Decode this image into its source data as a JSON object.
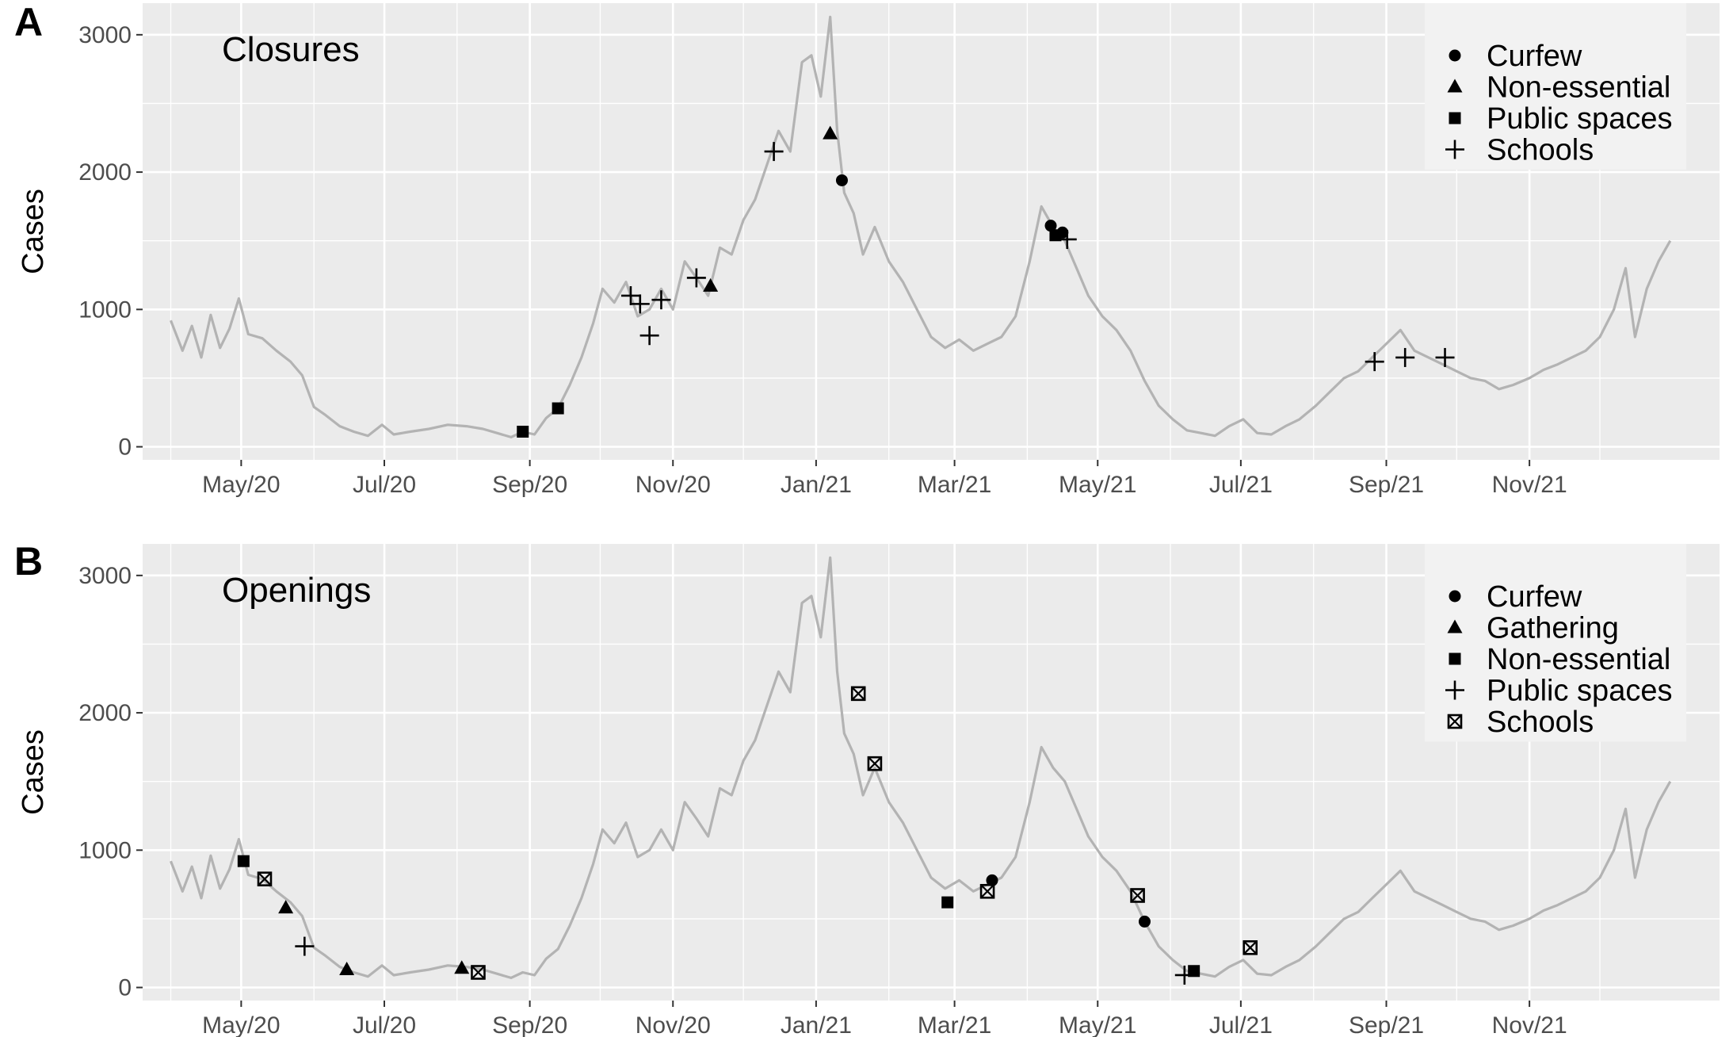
{
  "chart_data": [
    {
      "type": "line",
      "panel_label": "A",
      "title": "Closures",
      "ylabel": "Cases",
      "xlabel": "",
      "ylim": [
        0,
        3200
      ],
      "y_ticks": [
        "0",
        "1000",
        "2000",
        "3000"
      ],
      "x_ticks": [
        "May/20",
        "Jul/20",
        "Sep/20",
        "Nov/20",
        "Jan/21",
        "Mar/21",
        "May/21",
        "Jul/21",
        "Sep/21",
        "Nov/21"
      ],
      "grid": true,
      "legend_position": "top-right",
      "line_color": "#b3b3b3",
      "series": [
        {
          "name": "Curfew",
          "shape": "circle",
          "points": [
            {
              "x": "2021-01-12",
              "y": 1940
            },
            {
              "x": "2021-04-11",
              "y": 1610
            },
            {
              "x": "2021-04-16",
              "y": 1560
            }
          ]
        },
        {
          "name": "Non-essential",
          "shape": "triangle",
          "points": [
            {
              "x": "2020-11-17",
              "y": 1170
            },
            {
              "x": "2021-01-07",
              "y": 2280
            }
          ]
        },
        {
          "name": "Public spaces",
          "shape": "square",
          "points": [
            {
              "x": "2020-08-29",
              "y": 110
            },
            {
              "x": "2020-09-13",
              "y": 280
            },
            {
              "x": "2021-04-13",
              "y": 1540
            }
          ]
        },
        {
          "name": "Schools",
          "shape": "plus",
          "points": [
            {
              "x": "2020-10-14",
              "y": 1100
            },
            {
              "x": "2020-10-18",
              "y": 1040
            },
            {
              "x": "2020-10-22",
              "y": 810
            },
            {
              "x": "2020-10-27",
              "y": 1070
            },
            {
              "x": "2020-11-11",
              "y": 1230
            },
            {
              "x": "2020-12-14",
              "y": 2150
            },
            {
              "x": "2021-04-18",
              "y": 1510
            },
            {
              "x": "2021-08-27",
              "y": 620
            },
            {
              "x": "2021-09-09",
              "y": 650
            },
            {
              "x": "2021-09-26",
              "y": 650
            }
          ]
        }
      ],
      "cases_line": {
        "x_start": "2020-04-01",
        "x_end": "2021-12-31"
      }
    },
    {
      "type": "line",
      "panel_label": "B",
      "title": "Openings",
      "ylabel": "Cases",
      "xlabel": "",
      "ylim": [
        0,
        3200
      ],
      "y_ticks": [
        "0",
        "1000",
        "2000",
        "3000"
      ],
      "x_ticks": [
        "May/20",
        "Jul/20",
        "Sep/20",
        "Nov/20",
        "Jan/21",
        "Mar/21",
        "May/21",
        "Jul/21",
        "Sep/21",
        "Nov/21"
      ],
      "grid": true,
      "legend_position": "top-right",
      "line_color": "#b3b3b3",
      "series": [
        {
          "name": "Curfew",
          "shape": "circle",
          "points": [
            {
              "x": "2021-03-17",
              "y": 780
            },
            {
              "x": "2021-05-21",
              "y": 480
            }
          ]
        },
        {
          "name": "Gathering",
          "shape": "triangle",
          "points": [
            {
              "x": "2020-05-20",
              "y": 580
            },
            {
              "x": "2020-06-15",
              "y": 130
            },
            {
              "x": "2020-08-03",
              "y": 140
            }
          ]
        },
        {
          "name": "Non-essential",
          "shape": "square",
          "points": [
            {
              "x": "2020-05-02",
              "y": 920
            },
            {
              "x": "2021-02-26",
              "y": 620
            },
            {
              "x": "2021-06-11",
              "y": 120
            }
          ]
        },
        {
          "name": "Public spaces",
          "shape": "plus",
          "points": [
            {
              "x": "2020-05-28",
              "y": 300
            },
            {
              "x": "2021-06-07",
              "y": 90
            }
          ]
        },
        {
          "name": "Schools",
          "shape": "boxx",
          "points": [
            {
              "x": "2020-05-11",
              "y": 790
            },
            {
              "x": "2020-08-10",
              "y": 110
            },
            {
              "x": "2021-01-19",
              "y": 2140
            },
            {
              "x": "2021-01-26",
              "y": 1630
            },
            {
              "x": "2021-03-15",
              "y": 700
            },
            {
              "x": "2021-05-18",
              "y": 670
            },
            {
              "x": "2021-07-05",
              "y": 290
            }
          ]
        }
      ],
      "cases_line": {
        "x_start": "2020-04-01",
        "x_end": "2021-12-31"
      }
    }
  ],
  "cases_curve": [
    [
      "2020-04-01",
      920
    ],
    [
      "2020-04-06",
      700
    ],
    [
      "2020-04-10",
      880
    ],
    [
      "2020-04-14",
      650
    ],
    [
      "2020-04-18",
      960
    ],
    [
      "2020-04-22",
      720
    ],
    [
      "2020-04-26",
      860
    ],
    [
      "2020-04-30",
      1080
    ],
    [
      "2020-05-04",
      820
    ],
    [
      "2020-05-10",
      790
    ],
    [
      "2020-05-16",
      700
    ],
    [
      "2020-05-22",
      620
    ],
    [
      "2020-05-27",
      520
    ],
    [
      "2020-06-01",
      290
    ],
    [
      "2020-06-06",
      230
    ],
    [
      "2020-06-12",
      150
    ],
    [
      "2020-06-18",
      110
    ],
    [
      "2020-06-24",
      80
    ],
    [
      "2020-06-30",
      160
    ],
    [
      "2020-07-05",
      90
    ],
    [
      "2020-07-12",
      110
    ],
    [
      "2020-07-20",
      130
    ],
    [
      "2020-07-28",
      160
    ],
    [
      "2020-08-05",
      150
    ],
    [
      "2020-08-12",
      130
    ],
    [
      "2020-08-18",
      100
    ],
    [
      "2020-08-24",
      70
    ],
    [
      "2020-08-29",
      110
    ],
    [
      "2020-09-03",
      90
    ],
    [
      "2020-09-08",
      210
    ],
    [
      "2020-09-13",
      280
    ],
    [
      "2020-09-18",
      450
    ],
    [
      "2020-09-23",
      650
    ],
    [
      "2020-09-28",
      900
    ],
    [
      "2020-10-02",
      1150
    ],
    [
      "2020-10-07",
      1050
    ],
    [
      "2020-10-12",
      1200
    ],
    [
      "2020-10-17",
      950
    ],
    [
      "2020-10-22",
      1000
    ],
    [
      "2020-10-27",
      1150
    ],
    [
      "2020-11-01",
      1000
    ],
    [
      "2020-11-06",
      1350
    ],
    [
      "2020-11-11",
      1230
    ],
    [
      "2020-11-16",
      1100
    ],
    [
      "2020-11-21",
      1450
    ],
    [
      "2020-11-26",
      1400
    ],
    [
      "2020-12-01",
      1650
    ],
    [
      "2020-12-06",
      1800
    ],
    [
      "2020-12-11",
      2050
    ],
    [
      "2020-12-16",
      2300
    ],
    [
      "2020-12-21",
      2150
    ],
    [
      "2020-12-26",
      2800
    ],
    [
      "2020-12-30",
      2850
    ],
    [
      "2021-01-03",
      2550
    ],
    [
      "2021-01-07",
      3130
    ],
    [
      "2021-01-10",
      2300
    ],
    [
      "2021-01-13",
      1850
    ],
    [
      "2021-01-17",
      1700
    ],
    [
      "2021-01-21",
      1400
    ],
    [
      "2021-01-26",
      1600
    ],
    [
      "2021-02-01",
      1350
    ],
    [
      "2021-02-07",
      1200
    ],
    [
      "2021-02-13",
      1000
    ],
    [
      "2021-02-19",
      800
    ],
    [
      "2021-02-25",
      720
    ],
    [
      "2021-03-03",
      780
    ],
    [
      "2021-03-09",
      700
    ],
    [
      "2021-03-15",
      750
    ],
    [
      "2021-03-21",
      800
    ],
    [
      "2021-03-27",
      950
    ],
    [
      "2021-04-02",
      1350
    ],
    [
      "2021-04-07",
      1750
    ],
    [
      "2021-04-12",
      1600
    ],
    [
      "2021-04-17",
      1500
    ],
    [
      "2021-04-22",
      1300
    ],
    [
      "2021-04-27",
      1100
    ],
    [
      "2021-05-03",
      950
    ],
    [
      "2021-05-09",
      850
    ],
    [
      "2021-05-15",
      700
    ],
    [
      "2021-05-21",
      480
    ],
    [
      "2021-05-27",
      300
    ],
    [
      "2021-06-02",
      200
    ],
    [
      "2021-06-08",
      120
    ],
    [
      "2021-06-14",
      100
    ],
    [
      "2021-06-20",
      80
    ],
    [
      "2021-06-26",
      150
    ],
    [
      "2021-07-02",
      200
    ],
    [
      "2021-07-08",
      100
    ],
    [
      "2021-07-14",
      90
    ],
    [
      "2021-07-20",
      150
    ],
    [
      "2021-07-26",
      200
    ],
    [
      "2021-08-02",
      300
    ],
    [
      "2021-08-08",
      400
    ],
    [
      "2021-08-14",
      500
    ],
    [
      "2021-08-20",
      550
    ],
    [
      "2021-08-26",
      650
    ],
    [
      "2021-09-01",
      750
    ],
    [
      "2021-09-07",
      850
    ],
    [
      "2021-09-13",
      700
    ],
    [
      "2021-09-19",
      650
    ],
    [
      "2021-09-25",
      600
    ],
    [
      "2021-10-01",
      550
    ],
    [
      "2021-10-07",
      500
    ],
    [
      "2021-10-13",
      480
    ],
    [
      "2021-10-19",
      420
    ],
    [
      "2021-10-25",
      450
    ],
    [
      "2021-11-01",
      500
    ],
    [
      "2021-11-07",
      560
    ],
    [
      "2021-11-13",
      600
    ],
    [
      "2021-11-19",
      650
    ],
    [
      "2021-11-25",
      700
    ],
    [
      "2021-12-01",
      800
    ],
    [
      "2021-12-07",
      1000
    ],
    [
      "2021-12-12",
      1300
    ],
    [
      "2021-12-16",
      800
    ],
    [
      "2021-12-21",
      1150
    ],
    [
      "2021-12-26",
      1350
    ],
    [
      "2021-12-31",
      1500
    ]
  ]
}
